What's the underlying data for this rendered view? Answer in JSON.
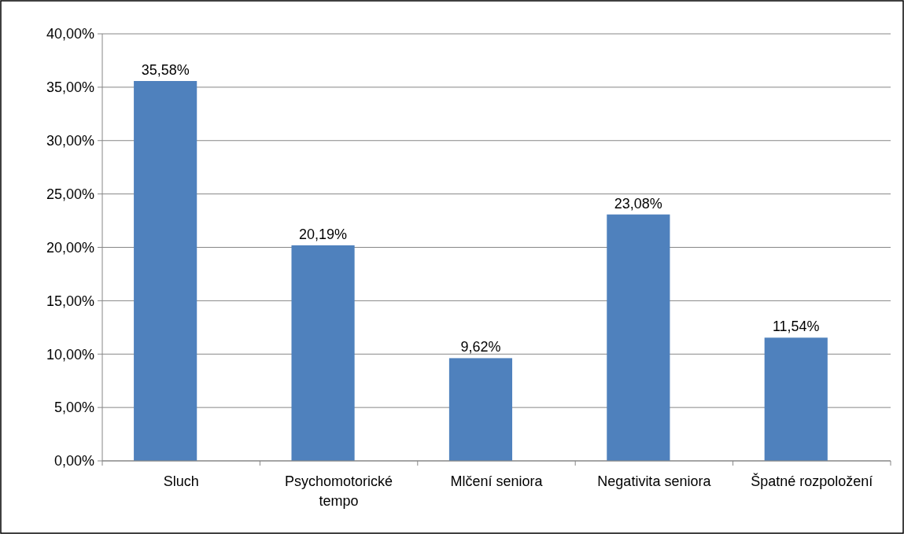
{
  "chart_data": {
    "type": "bar",
    "categories": [
      "Sluch",
      "Psychomotorické tempo",
      "Mlčení seniora",
      "Negativita seniora",
      "Špatné rozpoložení"
    ],
    "values": [
      35.58,
      20.19,
      9.62,
      23.08,
      11.54
    ],
    "value_labels": [
      "35,58%",
      "20,19%",
      "9,62%",
      "23,08%",
      "11,54%"
    ],
    "color": "#4f81bd",
    "ylim": [
      0,
      40
    ],
    "yticks": [
      {
        "value": 0,
        "label": "0,00%"
      },
      {
        "value": 5,
        "label": "5,00%"
      },
      {
        "value": 10,
        "label": "10,00%"
      },
      {
        "value": 15,
        "label": "15,00%"
      },
      {
        "value": 20,
        "label": "20,00%"
      },
      {
        "value": 25,
        "label": "25,00%"
      },
      {
        "value": 30,
        "label": "30,00%"
      },
      {
        "value": 35,
        "label": "35,00%"
      },
      {
        "value": 40,
        "label": "40,00%"
      }
    ],
    "grid": "y"
  }
}
